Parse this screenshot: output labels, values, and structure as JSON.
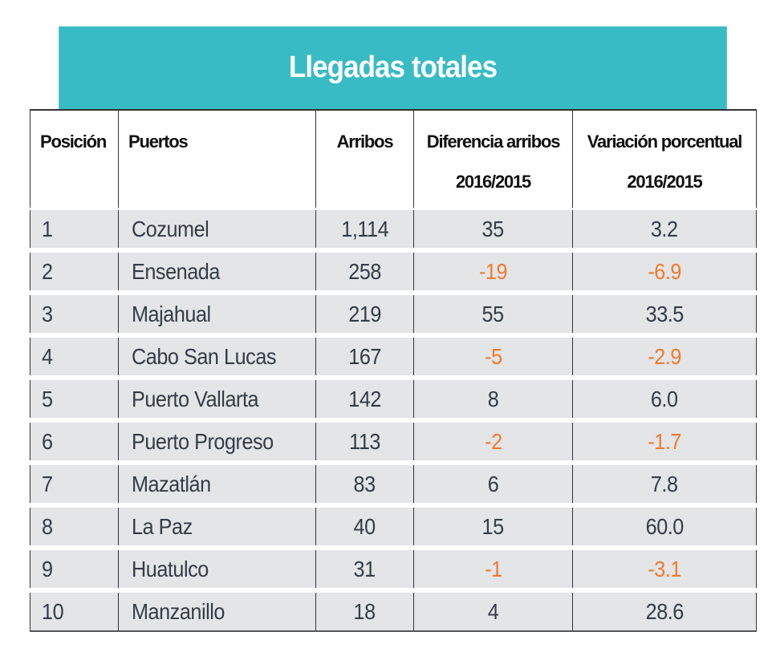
{
  "chart_data": {
    "type": "table",
    "title": "Llegadas totales",
    "columns": [
      {
        "key": "posicion",
        "label": [
          "Posición"
        ]
      },
      {
        "key": "puerto",
        "label": [
          "Puertos"
        ]
      },
      {
        "key": "arribos",
        "label": [
          "Arribos"
        ]
      },
      {
        "key": "diferencia",
        "label": [
          "Diferencia arribos",
          "2016/2015"
        ]
      },
      {
        "key": "variacion",
        "label": [
          "Variación porcentual",
          "2016/2015"
        ]
      }
    ],
    "rows": [
      {
        "posicion": "1",
        "puerto": "Cozumel",
        "arribos": "1,114",
        "diferencia": "35",
        "variacion": "3.2"
      },
      {
        "posicion": "2",
        "puerto": "Ensenada",
        "arribos": "258",
        "diferencia": "-19",
        "variacion": "-6.9"
      },
      {
        "posicion": "3",
        "puerto": "Majahual",
        "arribos": "219",
        "diferencia": "55",
        "variacion": "33.5"
      },
      {
        "posicion": "4",
        "puerto": "Cabo San Lucas",
        "arribos": "167",
        "diferencia": "-5",
        "variacion": "-2.9"
      },
      {
        "posicion": "5",
        "puerto": "Puerto Vallarta",
        "arribos": "142",
        "diferencia": "8",
        "variacion": "6.0"
      },
      {
        "posicion": "6",
        "puerto": "Puerto Progreso",
        "arribos": "113",
        "diferencia": "-2",
        "variacion": "-1.7"
      },
      {
        "posicion": "7",
        "puerto": "Mazatlán",
        "arribos": "83",
        "diferencia": "6",
        "variacion": "7.8"
      },
      {
        "posicion": "8",
        "puerto": "La Paz",
        "arribos": "40",
        "diferencia": "15",
        "variacion": "60.0"
      },
      {
        "posicion": "9",
        "puerto": "Huatulco",
        "arribos": "31",
        "diferencia": "-1",
        "variacion": "-3.1"
      },
      {
        "posicion": "10",
        "puerto": "Manzanillo",
        "arribos": "18",
        "diferencia": "4",
        "variacion": "28.6"
      }
    ],
    "colors": {
      "header_bar": "#38bbc4",
      "row_background": "#e3e5e7",
      "positive_text": "#333c47",
      "negative_text": "#f07a2c"
    }
  }
}
